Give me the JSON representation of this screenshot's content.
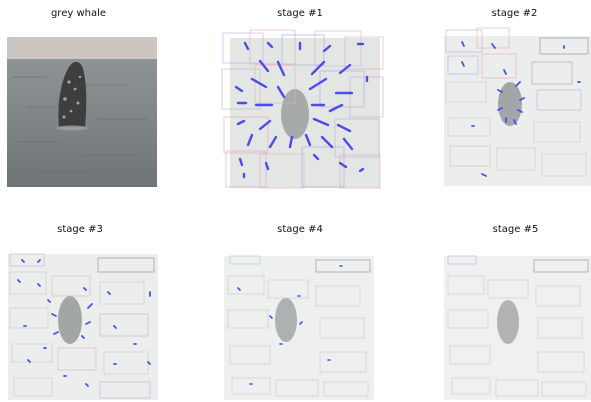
{
  "figure": {
    "panels": [
      {
        "key": "original",
        "title": "grey whale"
      },
      {
        "key": "stage1",
        "title": "stage #1"
      },
      {
        "key": "stage2",
        "title": "stage #2"
      },
      {
        "key": "stage3",
        "title": "stage #3"
      },
      {
        "key": "stage4",
        "title": "stage #4"
      },
      {
        "key": "stage5",
        "title": "stage #5"
      }
    ]
  },
  "colors": {
    "sea": "#7f8587",
    "sky": "#c9c4bf",
    "whale": "#3b3b3b",
    "arrow": "#4a4cf0",
    "faded_bg": "#e9ecea"
  }
}
